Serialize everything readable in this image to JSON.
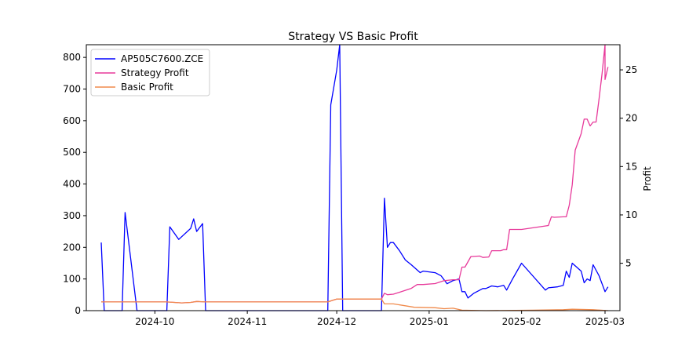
{
  "chart_data": {
    "type": "line",
    "title": "Strategy VS Basic Profit",
    "xlabel": "",
    "ylabel_left": "",
    "ylabel_right": "Profit",
    "grid": false,
    "legend_position": "top-left",
    "x_ticks": [
      "2024-10",
      "2024-11",
      "2024-12",
      "2025-01",
      "2025-02",
      "2025-03"
    ],
    "y_left_ticks": [
      0,
      100,
      200,
      300,
      400,
      500,
      600,
      700,
      800
    ],
    "y_right_ticks": [
      5,
      10,
      15,
      20,
      25
    ],
    "x_range": [
      "2024-09-08",
      "2025-03-06"
    ],
    "y_left_range": [
      0,
      840
    ],
    "y_right_range": [
      0.1,
      27.6
    ],
    "series": [
      {
        "name": "AP505C7600.ZCE",
        "color": "#0000ff",
        "axis": "left",
        "points": [
          [
            "2024-09-13",
            215
          ],
          [
            "2024-09-14",
            0
          ],
          [
            "2024-09-20",
            0
          ],
          [
            "2024-09-21",
            310
          ],
          [
            "2024-09-25",
            0
          ],
          [
            "2024-10-05",
            0
          ],
          [
            "2024-10-06",
            265
          ],
          [
            "2024-10-09",
            225
          ],
          [
            "2024-10-13",
            260
          ],
          [
            "2024-10-14",
            290
          ],
          [
            "2024-10-15",
            250
          ],
          [
            "2024-10-17",
            275
          ],
          [
            "2024-10-18",
            0
          ],
          [
            "2024-11-28",
            0
          ],
          [
            "2024-11-29",
            650
          ],
          [
            "2024-12-01",
            760
          ],
          [
            "2024-12-02",
            840
          ],
          [
            "2024-12-03",
            0
          ],
          [
            "2024-12-16",
            0
          ],
          [
            "2024-12-17",
            355
          ],
          [
            "2024-12-18",
            200
          ],
          [
            "2024-12-19",
            215
          ],
          [
            "2024-12-20",
            215
          ],
          [
            "2024-12-22",
            190
          ],
          [
            "2024-12-24",
            160
          ],
          [
            "2024-12-26",
            145
          ],
          [
            "2024-12-29",
            120
          ],
          [
            "2024-12-30",
            125
          ],
          [
            "2025-01-03",
            120
          ],
          [
            "2025-01-05",
            110
          ],
          [
            "2025-01-07",
            85
          ],
          [
            "2025-01-09",
            95
          ],
          [
            "2025-01-11",
            100
          ],
          [
            "2025-01-12",
            60
          ],
          [
            "2025-01-13",
            60
          ],
          [
            "2025-01-14",
            40
          ],
          [
            "2025-01-16",
            55
          ],
          [
            "2025-01-19",
            70
          ],
          [
            "2025-01-20",
            70
          ],
          [
            "2025-01-22",
            78
          ],
          [
            "2025-01-24",
            75
          ],
          [
            "2025-01-26",
            80
          ],
          [
            "2025-01-27",
            65
          ],
          [
            "2025-01-29",
            100
          ],
          [
            "2025-02-01",
            150
          ],
          [
            "2025-02-09",
            65
          ],
          [
            "2025-02-10",
            72
          ],
          [
            "2025-02-13",
            75
          ],
          [
            "2025-02-15",
            80
          ],
          [
            "2025-02-16",
            125
          ],
          [
            "2025-02-17",
            105
          ],
          [
            "2025-02-18",
            150
          ],
          [
            "2025-02-21",
            125
          ],
          [
            "2025-02-22",
            88
          ],
          [
            "2025-02-23",
            100
          ],
          [
            "2025-02-24",
            95
          ],
          [
            "2025-02-25",
            145
          ],
          [
            "2025-02-27",
            110
          ],
          [
            "2025-03-01",
            60
          ],
          [
            "2025-03-02",
            75
          ]
        ]
      },
      {
        "name": "Strategy Profit",
        "color": "#e7399a",
        "axis": "right",
        "points": [
          [
            "2024-09-13",
            1.0
          ],
          [
            "2024-10-05",
            1.0
          ],
          [
            "2024-10-10",
            0.9
          ],
          [
            "2024-10-13",
            0.95
          ],
          [
            "2024-10-15",
            1.05
          ],
          [
            "2024-10-18",
            1.0
          ],
          [
            "2024-11-28",
            1.0
          ],
          [
            "2024-11-30",
            1.2
          ],
          [
            "2024-12-01",
            1.3
          ],
          [
            "2024-12-16",
            1.3
          ],
          [
            "2024-12-17",
            1.9
          ],
          [
            "2024-12-18",
            1.75
          ],
          [
            "2024-12-20",
            1.8
          ],
          [
            "2024-12-22",
            2.0
          ],
          [
            "2024-12-24",
            2.2
          ],
          [
            "2024-12-26",
            2.4
          ],
          [
            "2024-12-28",
            2.8
          ],
          [
            "2024-12-30",
            2.8
          ],
          [
            "2025-01-03",
            2.9
          ],
          [
            "2025-01-06",
            3.2
          ],
          [
            "2025-01-09",
            3.3
          ],
          [
            "2025-01-11",
            3.3
          ],
          [
            "2025-01-12",
            4.6
          ],
          [
            "2025-01-13",
            4.6
          ],
          [
            "2025-01-15",
            5.7
          ],
          [
            "2025-01-18",
            5.75
          ],
          [
            "2025-01-19",
            5.6
          ],
          [
            "2025-01-21",
            5.65
          ],
          [
            "2025-01-22",
            6.3
          ],
          [
            "2025-01-25",
            6.3
          ],
          [
            "2025-01-26",
            6.4
          ],
          [
            "2025-01-27",
            6.4
          ],
          [
            "2025-01-28",
            8.5
          ],
          [
            "2025-02-01",
            8.5
          ],
          [
            "2025-02-10",
            8.9
          ],
          [
            "2025-02-11",
            9.8
          ],
          [
            "2025-02-12",
            9.75
          ],
          [
            "2025-02-15",
            9.8
          ],
          [
            "2025-02-16",
            9.8
          ],
          [
            "2025-02-17",
            11.0
          ],
          [
            "2025-02-18",
            13.1
          ],
          [
            "2025-02-19",
            16.7
          ],
          [
            "2025-02-21",
            18.4
          ],
          [
            "2025-02-22",
            19.9
          ],
          [
            "2025-02-23",
            19.9
          ],
          [
            "2025-02-24",
            19.2
          ],
          [
            "2025-02-25",
            19.6
          ],
          [
            "2025-02-26",
            19.6
          ],
          [
            "2025-02-27",
            22.0
          ],
          [
            "2025-02-28",
            24.6
          ],
          [
            "2025-02-29",
            27.6
          ],
          [
            "2025-03-01",
            24.0
          ],
          [
            "2025-03-02",
            25.3
          ]
        ]
      },
      {
        "name": "Basic Profit",
        "color": "#f08a4b",
        "axis": "right",
        "points": [
          [
            "2024-09-13",
            1.0
          ],
          [
            "2024-10-05",
            1.0
          ],
          [
            "2024-10-10",
            0.9
          ],
          [
            "2024-10-13",
            0.95
          ],
          [
            "2024-10-15",
            1.05
          ],
          [
            "2024-10-18",
            1.0
          ],
          [
            "2024-11-28",
            1.0
          ],
          [
            "2024-11-30",
            1.2
          ],
          [
            "2024-12-01",
            1.3
          ],
          [
            "2024-12-16",
            1.3
          ],
          [
            "2024-12-17",
            0.8
          ],
          [
            "2024-12-20",
            0.8
          ],
          [
            "2024-12-24",
            0.6
          ],
          [
            "2024-12-27",
            0.45
          ],
          [
            "2025-01-03",
            0.4
          ],
          [
            "2025-01-06",
            0.3
          ],
          [
            "2025-01-09",
            0.35
          ],
          [
            "2025-01-12",
            0.15
          ],
          [
            "2025-01-20",
            0.1
          ],
          [
            "2025-02-05",
            0.15
          ],
          [
            "2025-02-15",
            0.2
          ],
          [
            "2025-02-18",
            0.25
          ],
          [
            "2025-02-25",
            0.2
          ],
          [
            "2025-03-02",
            0.1
          ]
        ]
      }
    ]
  }
}
